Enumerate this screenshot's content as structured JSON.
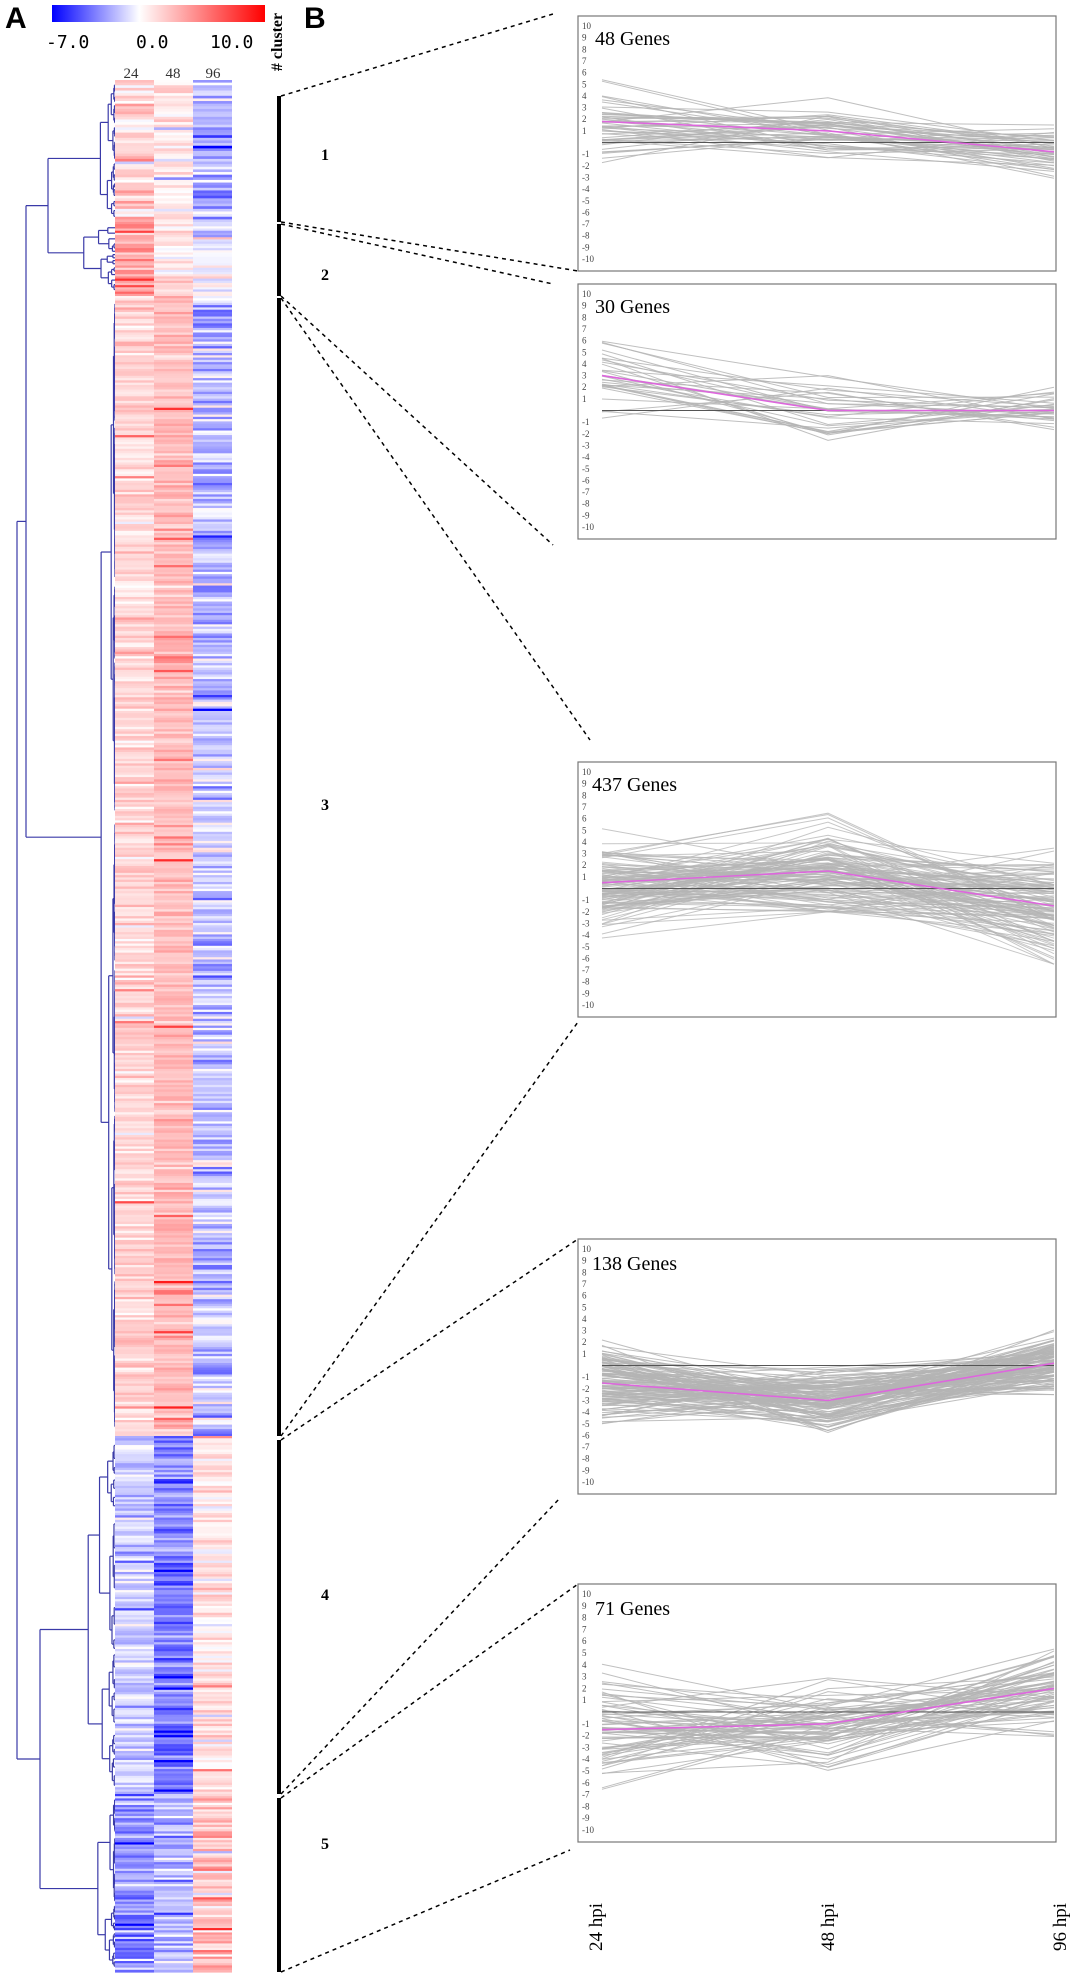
{
  "figure": {
    "panel_a": "A",
    "panel_b": "B",
    "cluster_header": "# cluster"
  },
  "colorbar": {
    "min_label": "-7.0",
    "mid_label": "0.0",
    "max_label": "10.0",
    "min_color": "#0000ff",
    "mid_color": "#ffffff",
    "max_color": "#ff0000"
  },
  "heatmap_columns": [
    "24",
    "48",
    "96"
  ],
  "clusters": [
    {
      "id": "1",
      "gene_count": 48,
      "rows": 54,
      "profile": [
        1.8,
        1.0,
        -0.8
      ],
      "lo": [
        -2.5,
        -3.0,
        -7.5
      ],
      "hi": [
        6.0,
        4.0,
        1.5
      ]
    },
    {
      "id": "2",
      "gene_count": 30,
      "rows": 34,
      "profile": [
        3.0,
        0.0,
        0.0
      ],
      "lo": [
        -2.0,
        -5.5,
        -4.0
      ],
      "hi": [
        7.5,
        3.0,
        2.0
      ]
    },
    {
      "id": "3",
      "gene_count": 437,
      "rows": 500,
      "profile": [
        0.5,
        1.5,
        -1.5
      ],
      "lo": [
        -6.0,
        -2.0,
        -6.5
      ],
      "hi": [
        7.0,
        10.0,
        8.0
      ]
    },
    {
      "id": "4",
      "gene_count": 138,
      "rows": 158,
      "profile": [
        -1.5,
        -3.0,
        0.2
      ],
      "lo": [
        -5.0,
        -7.5,
        -2.5
      ],
      "hi": [
        5.0,
        1.5,
        5.5
      ]
    },
    {
      "id": "5",
      "gene_count": 71,
      "rows": 81,
      "profile": [
        -1.5,
        -1.0,
        2.0
      ],
      "lo": [
        -7.0,
        -5.5,
        -2.5
      ],
      "hi": [
        6.0,
        5.0,
        9.0
      ]
    }
  ],
  "chart_data": [
    {
      "type": "heatmap",
      "title": "",
      "colorbar_range": [
        -7.0,
        10.0
      ],
      "columns": [
        "24",
        "48",
        "96"
      ],
      "row_groups": [
        "1",
        "2",
        "3",
        "4",
        "5"
      ]
    },
    {
      "type": "line",
      "x": [
        "24 hpi",
        "48 hpi",
        "96 hpi"
      ],
      "ylim": [
        -10,
        10
      ],
      "yticks": [
        -10,
        -9,
        -8,
        -7,
        -6,
        -5,
        -4,
        -3,
        -2,
        -1,
        1,
        2,
        3,
        4,
        5,
        6,
        7,
        8,
        9,
        10
      ],
      "series": [
        {
          "name": "Cluster 1 mean",
          "title": "48 Genes",
          "values": [
            1.8,
            1.0,
            -0.8
          ]
        },
        {
          "name": "Cluster 2 mean",
          "title": "30 Genes",
          "values": [
            3.0,
            0.0,
            0.0
          ]
        },
        {
          "name": "Cluster 3 mean",
          "title": "437 Genes",
          "values": [
            0.5,
            1.5,
            -1.5
          ]
        },
        {
          "name": "Cluster 4 mean",
          "title": "138 Genes",
          "values": [
            -1.5,
            -3.0,
            0.2
          ]
        },
        {
          "name": "Cluster 5 mean",
          "title": "71 Genes",
          "values": [
            -1.5,
            -1.0,
            2.0
          ]
        }
      ],
      "gene_titles": [
        "48 Genes",
        "30 Genes",
        "437 Genes",
        "138 Genes",
        "71 Genes"
      ],
      "mean_line_color": "#dd66dd",
      "gene_line_color": "#b4b4b4"
    }
  ]
}
